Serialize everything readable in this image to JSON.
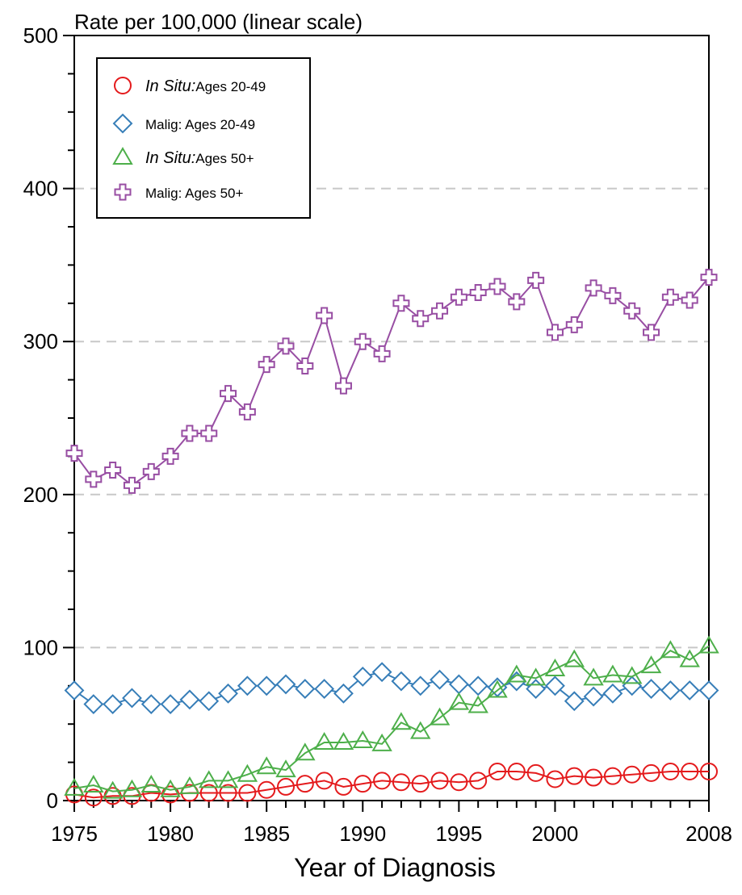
{
  "chart_data": {
    "type": "line",
    "title": "Rate per 100,000 (linear scale)",
    "xlabel": "Year of Diagnosis",
    "ylabel": "",
    "xlim": [
      1975,
      2008
    ],
    "ylim": [
      0,
      500
    ],
    "x_ticks": [
      1975,
      1980,
      1985,
      1990,
      1995,
      2000,
      2008
    ],
    "x_tick_labels": [
      "1975",
      "1980",
      "1985",
      "1990",
      "1995",
      "2000",
      "2008"
    ],
    "y_ticks": [
      0,
      100,
      200,
      300,
      400,
      500
    ],
    "y_tick_labels": [
      "0",
      "100",
      "200",
      "300",
      "400",
      "500"
    ],
    "grid": "horizontal dashed at 100, 200, 300, 400",
    "legend_position": "top-left",
    "x": [
      1975,
      1976,
      1977,
      1978,
      1979,
      1980,
      1981,
      1982,
      1983,
      1984,
      1985,
      1986,
      1987,
      1988,
      1989,
      1990,
      1991,
      1992,
      1993,
      1994,
      1995,
      1996,
      1997,
      1998,
      1999,
      2000,
      2001,
      2002,
      2003,
      2004,
      2005,
      2006,
      2007,
      2008
    ],
    "series": [
      {
        "name": "In Situ: Ages 20-49",
        "legend_italic": "In Situ:",
        "legend_rest": "Ages 20-49",
        "color": "#e41a1c",
        "marker": "circle",
        "values": [
          4,
          2,
          3,
          3,
          5,
          4,
          5,
          5,
          5,
          5,
          7,
          9,
          11,
          13,
          9,
          11,
          13,
          12,
          11,
          13,
          12,
          13,
          19,
          19,
          18,
          14,
          16,
          15,
          16,
          17,
          18,
          19,
          19,
          19
        ]
      },
      {
        "name": "Malig: Ages 20-49",
        "legend_italic": "",
        "legend_rest": "Malig: Ages 20-49",
        "color": "#377eb8",
        "marker": "diamond",
        "values": [
          72,
          63,
          63,
          67,
          63,
          63,
          66,
          65,
          70,
          75,
          75,
          76,
          73,
          73,
          70,
          81,
          84,
          78,
          75,
          79,
          76,
          75,
          74,
          78,
          73,
          75,
          65,
          68,
          70,
          75,
          73,
          72,
          72,
          72
        ]
      },
      {
        "name": "In Situ: Ages 50+",
        "legend_italic": "In Situ:",
        "legend_rest": "Ages 50+",
        "color": "#4daf4a",
        "marker": "triangle",
        "values": [
          8,
          10,
          6,
          7,
          10,
          7,
          9,
          13,
          13,
          17,
          22,
          20,
          31,
          38,
          38,
          39,
          37,
          51,
          45,
          54,
          64,
          62,
          72,
          82,
          80,
          86,
          92,
          80,
          82,
          81,
          88,
          98,
          92,
          101
        ]
      },
      {
        "name": "Malig: Ages 50+",
        "legend_italic": "",
        "legend_rest": "Malig: Ages 50+",
        "color": "#984ea3",
        "marker": "plus",
        "values": [
          227,
          210,
          216,
          206,
          215,
          225,
          240,
          240,
          266,
          254,
          285,
          297,
          284,
          317,
          271,
          300,
          292,
          325,
          315,
          320,
          329,
          332,
          336,
          326,
          340,
          306,
          311,
          335,
          330,
          320,
          306,
          329,
          327,
          342
        ]
      }
    ]
  }
}
